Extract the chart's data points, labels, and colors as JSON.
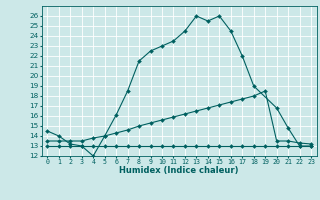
{
  "xlabel": "Humidex (Indice chaleur)",
  "bg_color": "#cce8e8",
  "line_color": "#006060",
  "grid_color": "#ffffff",
  "xlim": [
    -0.5,
    23.5
  ],
  "ylim": [
    12,
    27
  ],
  "yticks": [
    12,
    13,
    14,
    15,
    16,
    17,
    18,
    19,
    20,
    21,
    22,
    23,
    24,
    25,
    26
  ],
  "xticks": [
    0,
    1,
    2,
    3,
    4,
    5,
    6,
    7,
    8,
    9,
    10,
    11,
    12,
    13,
    14,
    15,
    16,
    17,
    18,
    19,
    20,
    21,
    22,
    23
  ],
  "line1_x": [
    0,
    1,
    2,
    3,
    4,
    5,
    6,
    7,
    8,
    9,
    10,
    11,
    12,
    13,
    14,
    15,
    16,
    17,
    18,
    20,
    21,
    22,
    23
  ],
  "line1_y": [
    14.5,
    14.0,
    13.2,
    13.0,
    12.0,
    14.0,
    16.1,
    18.5,
    21.5,
    22.5,
    23.0,
    23.5,
    24.5,
    26.0,
    25.5,
    26.0,
    24.5,
    22.0,
    19.0,
    16.8,
    14.8,
    13.0,
    13.0
  ],
  "line2_x": [
    0,
    1,
    2,
    3,
    4,
    5,
    6,
    7,
    8,
    9,
    10,
    11,
    12,
    13,
    14,
    15,
    16,
    17,
    18,
    19,
    20,
    21,
    22,
    23
  ],
  "line2_y": [
    13.5,
    13.5,
    13.5,
    13.5,
    13.8,
    14.0,
    14.3,
    14.6,
    15.0,
    15.3,
    15.6,
    15.9,
    16.2,
    16.5,
    16.8,
    17.1,
    17.4,
    17.7,
    18.0,
    18.5,
    13.5,
    13.5,
    13.3,
    13.2
  ],
  "line3_x": [
    0,
    1,
    2,
    3,
    4,
    5,
    6,
    7,
    8,
    9,
    10,
    11,
    12,
    13,
    14,
    15,
    16,
    17,
    18,
    19,
    20,
    21,
    22,
    23
  ],
  "line3_y": [
    13.0,
    13.0,
    13.0,
    13.0,
    13.0,
    13.0,
    13.0,
    13.0,
    13.0,
    13.0,
    13.0,
    13.0,
    13.0,
    13.0,
    13.0,
    13.0,
    13.0,
    13.0,
    13.0,
    13.0,
    13.0,
    13.0,
    13.0,
    13.0
  ],
  "xlabel_fontsize": 6.0,
  "tick_fontsize": 4.8,
  "ytick_fontsize": 5.2,
  "linewidth": 0.8,
  "markersize": 2.0
}
